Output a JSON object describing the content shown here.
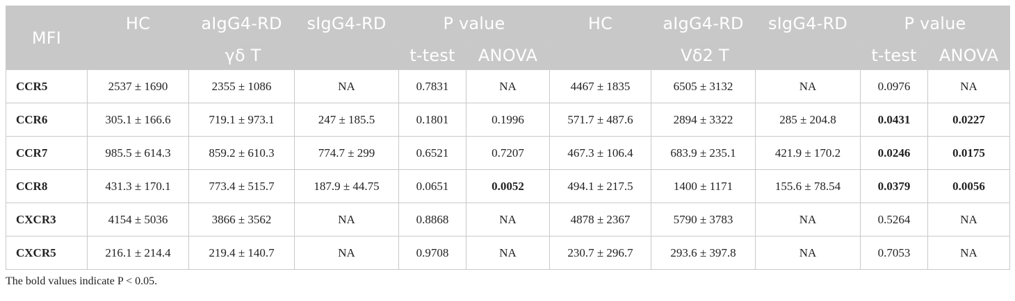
{
  "table": {
    "header": {
      "mfi": "MFI",
      "group1": {
        "cols": [
          "HC",
          "aIgG4-RD",
          "sIgG4-RD"
        ],
        "cell_type": "γδ T",
        "p_value": "P value",
        "tests": [
          "t-test",
          "ANOVA"
        ]
      },
      "group2": {
        "cols": [
          "HC",
          "aIgG4-RD",
          "sIgG4-RD"
        ],
        "cell_type": "Vδ2 T",
        "p_value": "P value",
        "tests": [
          "t-test",
          "ANOVA"
        ]
      }
    },
    "rows": [
      {
        "label": "CCR5",
        "cells": [
          "2537 ± 1690",
          "2355 ± 1086",
          "NA",
          "0.7831",
          "NA",
          "4467 ± 1835",
          "6505 ± 3132",
          "NA",
          "0.0976",
          "NA"
        ],
        "bold": [
          false,
          false,
          false,
          false,
          false,
          false,
          false,
          false,
          false,
          false
        ]
      },
      {
        "label": "CCR6",
        "cells": [
          "305.1 ± 166.6",
          "719.1 ± 973.1",
          "247 ± 185.5",
          "0.1801",
          "0.1996",
          "571.7 ± 487.6",
          "2894 ± 3322",
          "285 ± 204.8",
          "0.0431",
          "0.0227"
        ],
        "bold": [
          false,
          false,
          false,
          false,
          false,
          false,
          false,
          false,
          true,
          true
        ]
      },
      {
        "label": "CCR7",
        "cells": [
          "985.5 ± 614.3",
          "859.2 ± 610.3",
          "774.7 ± 299",
          "0.6521",
          "0.7207",
          "467.3 ± 106.4",
          "683.9 ± 235.1",
          "421.9 ± 170.2",
          "0.0246",
          "0.0175"
        ],
        "bold": [
          false,
          false,
          false,
          false,
          false,
          false,
          false,
          false,
          true,
          true
        ]
      },
      {
        "label": "CCR8",
        "cells": [
          "431.3 ± 170.1",
          "773.4 ± 515.7",
          "187.9 ± 44.75",
          "0.0651",
          "0.0052",
          "494.1 ± 217.5",
          "1400 ± 1171",
          "155.6 ± 78.54",
          "0.0379",
          "0.0056"
        ],
        "bold": [
          false,
          false,
          false,
          false,
          true,
          false,
          false,
          false,
          true,
          true
        ]
      },
      {
        "label": "CXCR3",
        "cells": [
          "4154 ± 5036",
          "3866 ± 3562",
          "NA",
          "0.8868",
          "NA",
          "4878 ± 2367",
          "5790 ± 3783",
          "NA",
          "0.5264",
          "NA"
        ],
        "bold": [
          false,
          false,
          false,
          false,
          false,
          false,
          false,
          false,
          false,
          false
        ]
      },
      {
        "label": "CXCR5",
        "cells": [
          "216.1 ± 214.4",
          "219.4 ± 140.7",
          "NA",
          "0.9708",
          "NA",
          "230.7 ± 296.7",
          "293.6 ± 397.8",
          "NA",
          "0.7053",
          "NA"
        ],
        "bold": [
          false,
          false,
          false,
          false,
          false,
          false,
          false,
          false,
          false,
          false
        ]
      }
    ],
    "footnote": "The bold values indicate P < 0.05."
  }
}
